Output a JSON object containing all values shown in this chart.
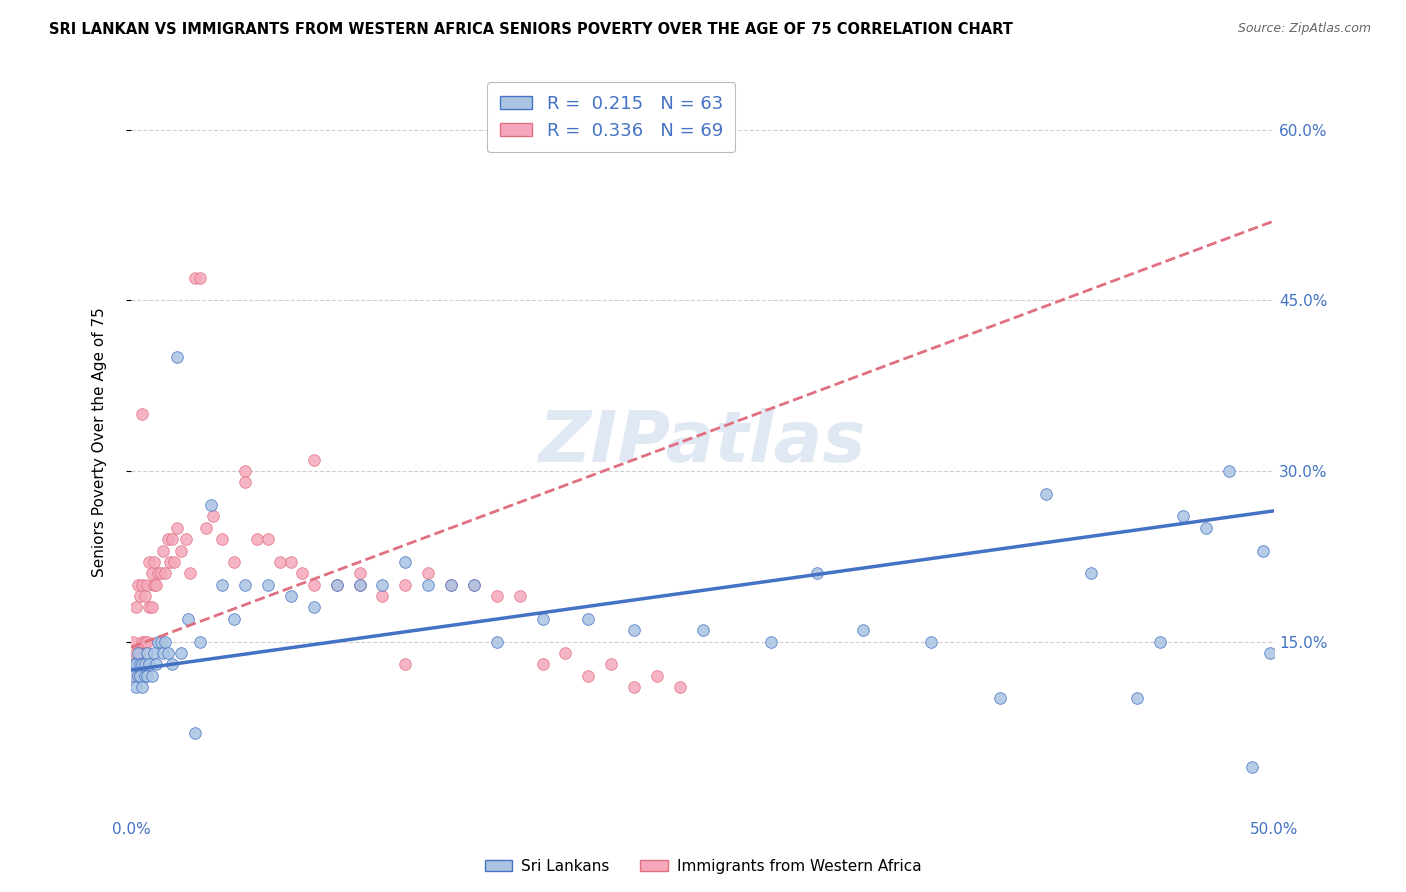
{
  "title": "SRI LANKAN VS IMMIGRANTS FROM WESTERN AFRICA SENIORS POVERTY OVER THE AGE OF 75 CORRELATION CHART",
  "source": "Source: ZipAtlas.com",
  "ylabel": "Seniors Poverty Over the Age of 75",
  "xlim": [
    0.0,
    0.5
  ],
  "ylim": [
    0.0,
    0.65
  ],
  "xticks": [
    0.0,
    0.1,
    0.2,
    0.3,
    0.4,
    0.5
  ],
  "xticklabels": [
    "0.0%",
    "",
    "",
    "",
    "",
    "50.0%"
  ],
  "yticks": [
    0.15,
    0.3,
    0.45,
    0.6
  ],
  "yticklabels": [
    "15.0%",
    "30.0%",
    "45.0%",
    "60.0%"
  ],
  "sri_lankan_R": 0.215,
  "sri_lankan_N": 63,
  "western_africa_R": 0.336,
  "western_africa_N": 69,
  "sri_lankan_color": "#aac4e2",
  "western_africa_color": "#f5a8bb",
  "sri_lankan_line_color": "#4472c4",
  "western_africa_line_color": "#e07080",
  "watermark": "ZIPatlas",
  "sri_lankans_x": [
    0.001,
    0.001,
    0.002,
    0.002,
    0.003,
    0.003,
    0.004,
    0.004,
    0.005,
    0.005,
    0.006,
    0.006,
    0.007,
    0.007,
    0.008,
    0.009,
    0.01,
    0.011,
    0.012,
    0.013,
    0.014,
    0.015,
    0.016,
    0.018,
    0.02,
    0.022,
    0.025,
    0.028,
    0.03,
    0.035,
    0.04,
    0.045,
    0.05,
    0.06,
    0.07,
    0.08,
    0.09,
    0.1,
    0.11,
    0.12,
    0.13,
    0.14,
    0.15,
    0.16,
    0.18,
    0.2,
    0.22,
    0.25,
    0.28,
    0.3,
    0.32,
    0.35,
    0.38,
    0.4,
    0.42,
    0.44,
    0.45,
    0.46,
    0.47,
    0.48,
    0.49,
    0.495,
    0.498
  ],
  "sri_lankans_y": [
    0.12,
    0.13,
    0.11,
    0.13,
    0.12,
    0.14,
    0.12,
    0.13,
    0.11,
    0.13,
    0.12,
    0.13,
    0.12,
    0.14,
    0.13,
    0.12,
    0.14,
    0.13,
    0.15,
    0.15,
    0.14,
    0.15,
    0.14,
    0.13,
    0.4,
    0.14,
    0.17,
    0.07,
    0.15,
    0.27,
    0.2,
    0.17,
    0.2,
    0.2,
    0.19,
    0.18,
    0.2,
    0.2,
    0.2,
    0.22,
    0.2,
    0.2,
    0.2,
    0.15,
    0.17,
    0.17,
    0.16,
    0.16,
    0.15,
    0.21,
    0.16,
    0.15,
    0.1,
    0.28,
    0.21,
    0.1,
    0.15,
    0.26,
    0.25,
    0.3,
    0.04,
    0.23,
    0.14
  ],
  "western_africa_x": [
    0.001,
    0.001,
    0.001,
    0.002,
    0.002,
    0.002,
    0.003,
    0.003,
    0.004,
    0.004,
    0.005,
    0.005,
    0.006,
    0.006,
    0.007,
    0.007,
    0.008,
    0.008,
    0.009,
    0.009,
    0.01,
    0.01,
    0.011,
    0.012,
    0.013,
    0.014,
    0.015,
    0.016,
    0.017,
    0.018,
    0.019,
    0.02,
    0.022,
    0.024,
    0.026,
    0.028,
    0.03,
    0.033,
    0.036,
    0.04,
    0.045,
    0.05,
    0.055,
    0.06,
    0.065,
    0.07,
    0.075,
    0.08,
    0.09,
    0.1,
    0.11,
    0.12,
    0.13,
    0.14,
    0.15,
    0.16,
    0.17,
    0.18,
    0.19,
    0.2,
    0.21,
    0.22,
    0.23,
    0.24,
    0.05,
    0.08,
    0.1,
    0.12,
    0.005
  ],
  "western_africa_y": [
    0.12,
    0.13,
    0.15,
    0.13,
    0.14,
    0.18,
    0.13,
    0.2,
    0.14,
    0.19,
    0.15,
    0.2,
    0.15,
    0.19,
    0.15,
    0.2,
    0.18,
    0.22,
    0.18,
    0.21,
    0.2,
    0.22,
    0.2,
    0.21,
    0.21,
    0.23,
    0.21,
    0.24,
    0.22,
    0.24,
    0.22,
    0.25,
    0.23,
    0.24,
    0.21,
    0.47,
    0.47,
    0.25,
    0.26,
    0.24,
    0.22,
    0.3,
    0.24,
    0.24,
    0.22,
    0.22,
    0.21,
    0.2,
    0.2,
    0.21,
    0.19,
    0.2,
    0.21,
    0.2,
    0.2,
    0.19,
    0.19,
    0.13,
    0.14,
    0.12,
    0.13,
    0.11,
    0.12,
    0.11,
    0.29,
    0.31,
    0.2,
    0.13,
    0.35
  ],
  "sl_trendline_x": [
    0.0,
    0.5
  ],
  "sl_trendline_y": [
    0.125,
    0.265
  ],
  "wa_trendline_x": [
    0.0,
    0.5
  ],
  "wa_trendline_y": [
    0.145,
    0.52
  ]
}
